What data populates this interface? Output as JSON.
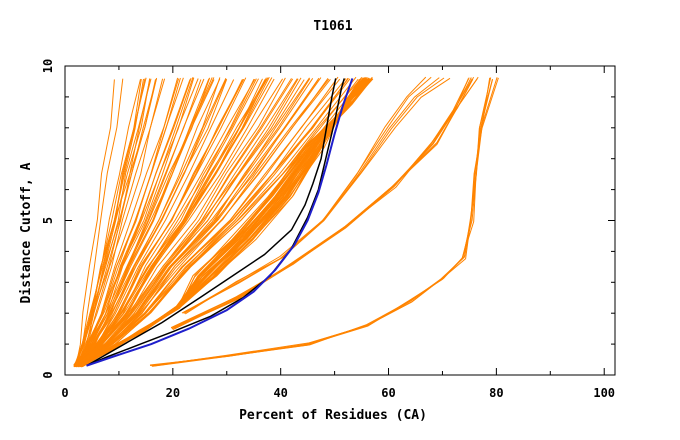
{
  "chart_data": {
    "type": "line",
    "title": "T1061",
    "xlabel": "Percent of Residues (CA)",
    "ylabel": "Distance Cutoff, A",
    "xlim": [
      0,
      102
    ],
    "ylim": [
      0,
      10
    ],
    "x_ticks": [
      "0",
      "20",
      "40",
      "60",
      "80",
      "100"
    ],
    "y_ticks": [
      "0",
      "5",
      "10"
    ],
    "grid": false,
    "legend": "none",
    "colors": {
      "highlight_black": "#000000",
      "highlight_blue": "#1f1fcc",
      "models": "#ff8400"
    },
    "highlight_series": [
      {
        "color": "black",
        "points": [
          [
            4,
            0.3
          ],
          [
            7,
            0.6
          ],
          [
            12,
            1.1
          ],
          [
            18,
            1.7
          ],
          [
            25,
            2.5
          ],
          [
            31,
            3.2
          ],
          [
            37,
            3.9
          ],
          [
            42,
            4.7
          ],
          [
            44.5,
            5.5
          ],
          [
            46,
            6.2
          ],
          [
            47.5,
            7.0
          ],
          [
            48.5,
            8.0
          ],
          [
            49.5,
            9.0
          ],
          [
            50.2,
            9.6
          ]
        ]
      },
      {
        "color": "black",
        "points": [
          [
            4,
            0.3
          ],
          [
            8,
            0.6
          ],
          [
            14,
            1.0
          ],
          [
            20,
            1.4
          ],
          [
            27,
            1.9
          ],
          [
            33,
            2.5
          ],
          [
            38,
            3.2
          ],
          [
            42,
            4.1
          ],
          [
            45,
            5.1
          ],
          [
            47,
            6.0
          ],
          [
            48.5,
            7.1
          ],
          [
            50,
            8.2
          ],
          [
            51.3,
            9.3
          ],
          [
            51.8,
            9.6
          ]
        ]
      },
      {
        "color": "blue",
        "points": [
          [
            4,
            0.3
          ],
          [
            9,
            0.6
          ],
          [
            16,
            1.0
          ],
          [
            23,
            1.5
          ],
          [
            30,
            2.1
          ],
          [
            35,
            2.7
          ],
          [
            39,
            3.4
          ],
          [
            42.5,
            4.2
          ],
          [
            45,
            5.0
          ],
          [
            47,
            5.9
          ],
          [
            48.5,
            6.8
          ],
          [
            50,
            7.8
          ],
          [
            51.5,
            8.7
          ],
          [
            53.3,
            9.6
          ]
        ]
      }
    ],
    "model_bands": [
      {
        "count": 80,
        "base": [
          [
            2,
            0.3
          ],
          [
            3,
            1.0
          ],
          [
            4,
            2.0
          ],
          [
            5.5,
            3.5
          ],
          [
            7,
            5.0
          ],
          [
            8.5,
            6.5
          ],
          [
            10,
            8.0
          ],
          [
            11.5,
            9.6
          ]
        ],
        "spread": [
          [
            0,
            0
          ],
          [
            6,
            0
          ],
          [
            12,
            0
          ],
          [
            18,
            0
          ],
          [
            26,
            0
          ],
          [
            32,
            0
          ],
          [
            38,
            0
          ],
          [
            44,
            0
          ]
        ]
      },
      {
        "count": 40,
        "base": [
          [
            3,
            0.3
          ],
          [
            8,
            0.8
          ],
          [
            14,
            1.4
          ],
          [
            21,
            2.2
          ],
          [
            28,
            3.2
          ],
          [
            35,
            4.4
          ],
          [
            42,
            5.8
          ],
          [
            48,
            7.4
          ],
          [
            52,
            8.8
          ],
          [
            55,
            9.6
          ]
        ],
        "spread": [
          [
            0,
            0
          ],
          [
            0,
            0
          ],
          [
            0,
            0
          ],
          [
            0,
            0
          ],
          [
            -4,
            0
          ],
          [
            -4,
            0
          ],
          [
            -4,
            0
          ],
          [
            -3,
            0
          ],
          [
            1,
            0
          ],
          [
            2,
            0
          ]
        ]
      },
      {
        "count": 5,
        "base": [
          [
            22,
            2.0
          ],
          [
            32,
            3.0
          ],
          [
            40,
            3.8
          ],
          [
            48,
            5.0
          ],
          [
            54,
            6.5
          ],
          [
            59,
            8.0
          ],
          [
            63,
            9.0
          ],
          [
            67,
            9.6
          ]
        ],
        "spread": [
          [
            0,
            0
          ],
          [
            0,
            0
          ],
          [
            0,
            0
          ],
          [
            0,
            0
          ],
          [
            1,
            0
          ],
          [
            2,
            0
          ],
          [
            3,
            0
          ],
          [
            4,
            0
          ]
        ]
      },
      {
        "count": 8,
        "base": [
          [
            20,
            1.5
          ],
          [
            32,
            2.5
          ],
          [
            42,
            3.6
          ],
          [
            52,
            4.8
          ],
          [
            61,
            6.1
          ],
          [
            68,
            7.5
          ],
          [
            72,
            8.6
          ],
          [
            74.5,
            9.6
          ]
        ],
        "spread": [
          [
            0,
            0
          ],
          [
            0,
            0
          ],
          [
            0,
            0
          ],
          [
            0,
            0
          ],
          [
            0,
            0
          ],
          [
            1,
            0
          ],
          [
            1,
            0
          ],
          [
            2,
            0
          ]
        ]
      },
      {
        "count": 6,
        "base": [
          [
            16,
            0.3
          ],
          [
            30,
            0.6
          ],
          [
            45,
            1.0
          ],
          [
            56,
            1.6
          ],
          [
            64,
            2.4
          ],
          [
            70,
            3.1
          ],
          [
            74,
            3.8
          ],
          [
            75.5,
            5.0
          ],
          [
            76.2,
            6.5
          ],
          [
            77,
            8.0
          ],
          [
            78.5,
            9.6
          ]
        ],
        "spread": [
          [
            0,
            0
          ],
          [
            0,
            0
          ],
          [
            0,
            0
          ],
          [
            0,
            0
          ],
          [
            0,
            0
          ],
          [
            0,
            0
          ],
          [
            0,
            0
          ],
          [
            0,
            0
          ],
          [
            0,
            0
          ],
          [
            0,
            0
          ],
          [
            2,
            0
          ]
        ]
      }
    ]
  }
}
